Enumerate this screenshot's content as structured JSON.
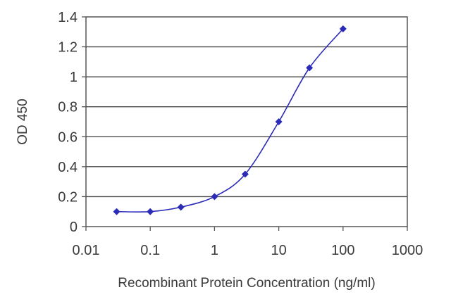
{
  "chart_data": {
    "type": "line",
    "title": "",
    "xlabel": "Recombinant Protein Concentration (ng/ml)",
    "ylabel": "OD 450",
    "x_scale": "log",
    "xlim": [
      0.01,
      1000
    ],
    "ylim": [
      0,
      1.4
    ],
    "x_ticks": [
      "0.01",
      "0.1",
      "1",
      "10",
      "100",
      "1000"
    ],
    "y_ticks": [
      "0",
      "0.2",
      "0.4",
      "0.6",
      "0.8",
      "1",
      "1.2",
      "1.4"
    ],
    "grid": "horizontal",
    "legend": "none",
    "series_color": "#2b2bb8",
    "series": [
      {
        "x": [
          0.03,
          0.1,
          0.3,
          1,
          3,
          10,
          30,
          100
        ],
        "y": [
          0.1,
          0.1,
          0.13,
          0.2,
          0.35,
          0.7,
          1.06,
          1.32
        ]
      }
    ]
  }
}
